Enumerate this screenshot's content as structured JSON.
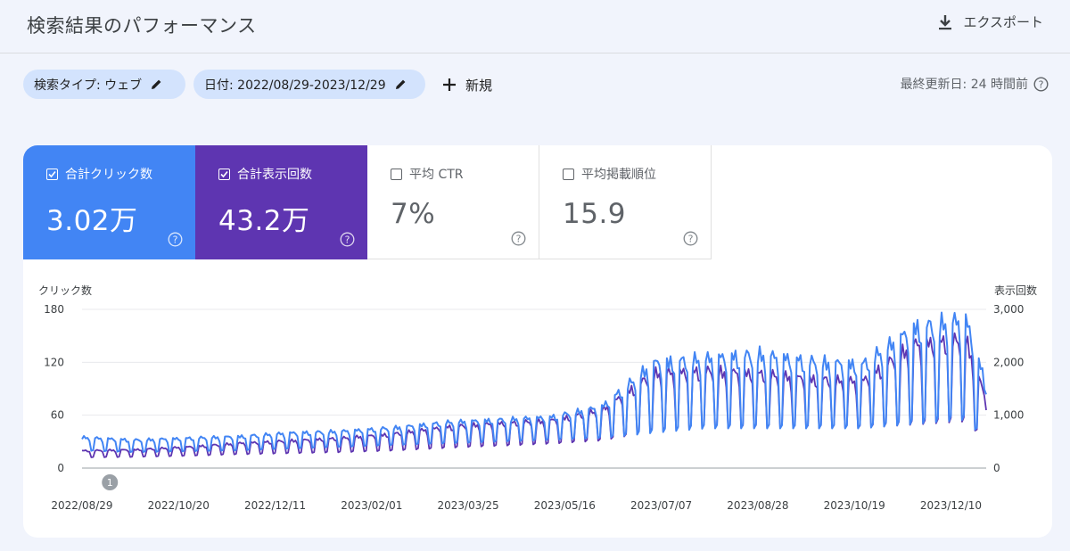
{
  "header": {
    "title": "検索結果のパフォーマンス",
    "export_label": "エクスポート"
  },
  "filters": {
    "search_type": "検索タイプ: ウェブ",
    "date": "日付: 2022/08/29-2023/12/29",
    "new_label": "新規"
  },
  "updated": "最終更新日: 24 時間前",
  "metrics": [
    {
      "label": "合計クリック数",
      "value": "3.02万",
      "checked": true
    },
    {
      "label": "合計表示回数",
      "value": "43.2万",
      "checked": true
    },
    {
      "label": "平均 CTR",
      "value": "7%",
      "checked": false
    },
    {
      "label": "平均掲載順位",
      "value": "15.9",
      "checked": false
    }
  ],
  "colors": {
    "clicks": "#4285f4",
    "impressions": "#5e35b1"
  },
  "annotation": {
    "label": "1",
    "x": "2022/09/13"
  },
  "chart_data": {
    "type": "line",
    "ylabel_left": "クリック数",
    "ylabel_right": "表示回数",
    "ylim_left": [
      0,
      180
    ],
    "ylim_right": [
      0,
      3000
    ],
    "left_ticks": [
      "0",
      "60",
      "120",
      "180"
    ],
    "right_ticks": [
      "0",
      "1,000",
      "2,000",
      "3,000"
    ],
    "x_start": "2022/08/29",
    "x_end": "2023/12/29",
    "x_tick_labels": [
      "2022/08/29",
      "2022/10/20",
      "2022/12/11",
      "2023/02/01",
      "2023/03/25",
      "2023/05/16",
      "2023/07/07",
      "2023/08/28",
      "2023/10/19",
      "2023/12/10"
    ],
    "grid": true,
    "series": [
      {
        "name": "クリック数",
        "axis": "left",
        "weeks": [
          "2022/08/29",
          "2022/09/26",
          "2022/10/24",
          "2022/11/21",
          "2022/12/19",
          "2023/01/16",
          "2023/02/13",
          "2023/03/13",
          "2023/04/10",
          "2023/05/08",
          "2023/06/05",
          "2023/07/03",
          "2023/07/31",
          "2023/08/28",
          "2023/09/25",
          "2023/10/23",
          "2023/11/20",
          "2023/12/18",
          "2023/12/29"
        ],
        "weekday_peak": [
          35,
          32,
          34,
          36,
          40,
          42,
          46,
          52,
          55,
          58,
          70,
          120,
          125,
          130,
          122,
          118,
          160,
          170,
          95
        ],
        "weekend_low": [
          20,
          18,
          19,
          20,
          22,
          24,
          26,
          28,
          30,
          32,
          34,
          40,
          45,
          45,
          45,
          45,
          50,
          55,
          30
        ]
      },
      {
        "name": "表示回数",
        "axis": "right",
        "weeks": [
          "2022/08/29",
          "2022/09/26",
          "2022/10/24",
          "2022/11/21",
          "2022/12/19",
          "2023/01/16",
          "2023/02/13",
          "2023/03/13",
          "2023/04/10",
          "2023/05/08",
          "2023/06/05",
          "2023/07/03",
          "2023/07/31",
          "2023/08/28",
          "2023/09/25",
          "2023/10/23",
          "2023/11/20",
          "2023/12/18",
          "2023/12/29"
        ],
        "weekday_peak": [
          330,
          350,
          400,
          470,
          520,
          570,
          650,
          780,
          850,
          900,
          1100,
          1800,
          1850,
          1800,
          1700,
          1650,
          2350,
          2450,
          1300
        ],
        "weekend_low": [
          200,
          210,
          230,
          260,
          280,
          300,
          330,
          380,
          420,
          460,
          520,
          700,
          760,
          760,
          760,
          760,
          820,
          880,
          500
        ]
      }
    ]
  }
}
